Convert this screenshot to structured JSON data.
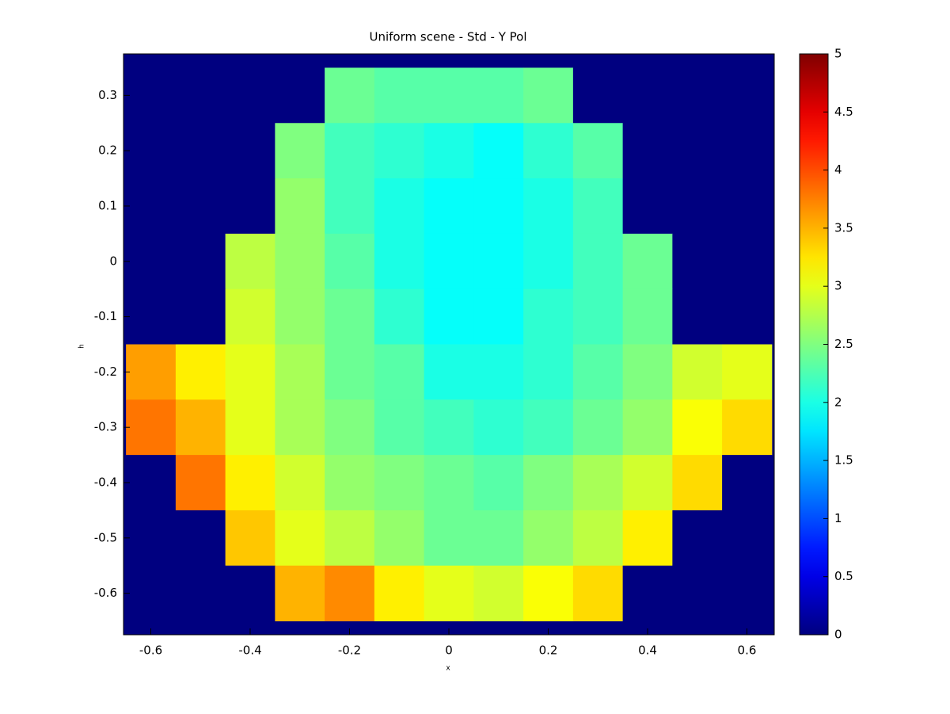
{
  "chart_data": {
    "type": "heatmap",
    "title": "Uniform scene - Std - Y Pol",
    "x_label": "x",
    "y_label": "h",
    "colormap": "jet",
    "x": [
      -0.6,
      -0.5,
      -0.4,
      -0.3,
      -0.2,
      -0.1,
      0,
      0.1,
      0.2,
      0.3,
      0.4,
      0.5,
      0.6
    ],
    "y": [
      0.3,
      0.2,
      0.1,
      0,
      -0.1,
      -0.2,
      -0.3,
      -0.4,
      -0.5,
      -0.6
    ],
    "z": [
      [
        0,
        0,
        0,
        0,
        2.4,
        2.3,
        2.3,
        2.3,
        2.4,
        0,
        0,
        0,
        0
      ],
      [
        0,
        0,
        0,
        2.5,
        2.2,
        2.1,
        2.0,
        1.9,
        2.1,
        2.3,
        0,
        0,
        0
      ],
      [
        0,
        0,
        0,
        2.6,
        2.2,
        2.0,
        1.9,
        1.9,
        2.0,
        2.2,
        0,
        0,
        0
      ],
      [
        0,
        0,
        2.8,
        2.6,
        2.3,
        2.0,
        1.9,
        1.9,
        2.0,
        2.2,
        2.4,
        0,
        0
      ],
      [
        0,
        0,
        2.9,
        2.6,
        2.4,
        2.1,
        1.9,
        1.9,
        2.1,
        2.2,
        2.4,
        0,
        0
      ],
      [
        3.6,
        3.2,
        3.0,
        2.7,
        2.4,
        2.3,
        2.0,
        2.0,
        2.1,
        2.3,
        2.5,
        2.9,
        3.0
      ],
      [
        3.8,
        3.5,
        3.0,
        2.7,
        2.5,
        2.3,
        2.2,
        2.1,
        2.2,
        2.4,
        2.6,
        3.1,
        3.3
      ],
      [
        0,
        3.8,
        3.2,
        2.9,
        2.6,
        2.5,
        2.4,
        2.3,
        2.5,
        2.7,
        2.9,
        3.3,
        0
      ],
      [
        0,
        0,
        3.4,
        3.0,
        2.8,
        2.6,
        2.4,
        2.4,
        2.6,
        2.8,
        3.2,
        0,
        0
      ],
      [
        0,
        0,
        0,
        3.5,
        3.7,
        3.2,
        3.0,
        2.9,
        3.1,
        3.3,
        0,
        0,
        0
      ]
    ],
    "xlim": [
      -0.655,
      0.655
    ],
    "ylim": [
      -0.675,
      0.375
    ],
    "xticks": [
      -0.6,
      -0.4,
      -0.2,
      0,
      0.2,
      0.4,
      0.6
    ],
    "yticks": [
      0.3,
      0.2,
      0.1,
      0,
      -0.1,
      -0.2,
      -0.3,
      -0.4,
      -0.5,
      -0.6
    ],
    "clim": [
      0,
      5
    ],
    "cticks": [
      0,
      0.5,
      1,
      1.5,
      2,
      2.5,
      3,
      3.5,
      4,
      4.5,
      5
    ]
  }
}
